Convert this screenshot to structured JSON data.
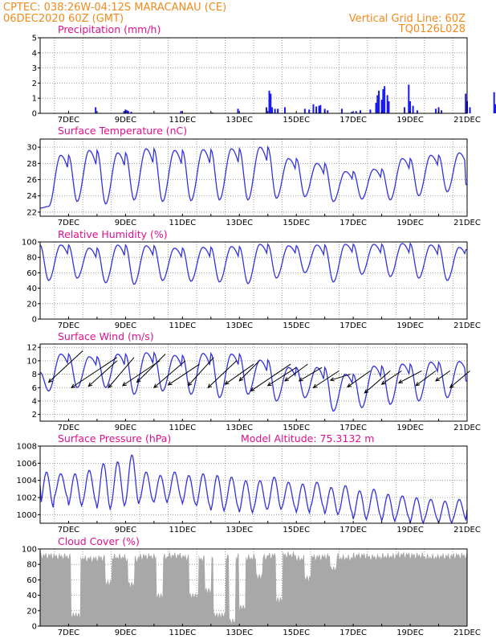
{
  "header": {
    "line1": "CPTEC:   038:26W-04:12S   MARACANAU (CE)",
    "line2": "06DEC2020 60Z (GMT)",
    "right1": "Vertical Grid Line: 60Z",
    "right2": "TQ0126L028"
  },
  "colors": {
    "line": "#3333dd",
    "bar": "#1a1aee",
    "cloud": "#a8a8a8",
    "title": "#e0108f",
    "header": "#f28a1c"
  },
  "x_ticks": [
    "7DEC",
    "9DEC",
    "11DEC",
    "13DEC",
    "15DEC",
    "17DEC",
    "19DEC",
    "21DEC"
  ],
  "chart_data": [
    {
      "type": "bar",
      "title": "Precipitation (mm/h)",
      "ylim": [
        0,
        5
      ],
      "yticks": [
        "0",
        "1",
        "2",
        "3",
        "4",
        "5"
      ],
      "x_unit": "days since 06DEC 00Z",
      "events": [
        [
          1.95,
          0.4
        ],
        [
          2.95,
          0.15
        ],
        [
          3.0,
          0.25
        ],
        [
          3.05,
          0.2
        ],
        [
          3.1,
          0.15
        ],
        [
          3.2,
          0.1
        ],
        [
          4.95,
          0.15
        ],
        [
          6.05,
          0.05
        ],
        [
          6.95,
          0.3
        ],
        [
          7.95,
          0.4
        ],
        [
          8.05,
          1.5
        ],
        [
          8.1,
          1.3
        ],
        [
          8.15,
          0.4
        ],
        [
          8.25,
          0.3
        ],
        [
          8.35,
          0.3
        ],
        [
          8.6,
          0.4
        ],
        [
          9.3,
          0.3
        ],
        [
          9.45,
          0.25
        ],
        [
          9.6,
          0.6
        ],
        [
          9.7,
          0.45
        ],
        [
          9.8,
          0.5
        ],
        [
          9.85,
          0.55
        ],
        [
          10.0,
          0.3
        ],
        [
          10.1,
          0.2
        ],
        [
          10.6,
          0.3
        ],
        [
          10.95,
          0.1
        ],
        [
          11.1,
          0.15
        ],
        [
          11.25,
          0.2
        ],
        [
          11.6,
          0.25
        ],
        [
          11.8,
          0.7
        ],
        [
          11.85,
          1.2
        ],
        [
          11.9,
          1.5
        ],
        [
          12.0,
          0.9
        ],
        [
          12.05,
          1.6
        ],
        [
          12.1,
          1.8
        ],
        [
          12.2,
          1.2
        ],
        [
          12.25,
          0.8
        ],
        [
          12.8,
          0.4
        ],
        [
          12.95,
          1.9
        ],
        [
          13.0,
          0.8
        ],
        [
          13.1,
          0.5
        ],
        [
          13.25,
          0.2
        ],
        [
          13.9,
          0.3
        ],
        [
          14.0,
          0.4
        ],
        [
          14.1,
          0.2
        ],
        [
          14.95,
          1.3
        ],
        [
          15.0,
          0.8
        ],
        [
          15.1,
          0.4
        ],
        [
          15.95,
          1.4
        ],
        [
          16.0,
          0.6
        ]
      ]
    },
    {
      "type": "line",
      "title": "Surface Temperature (nC)",
      "ylim": [
        21.5,
        31
      ],
      "yticks": [
        "22",
        "24",
        "26",
        "28",
        "30"
      ],
      "daily_max": [
        29,
        29.6,
        29.3,
        29.8,
        29.6,
        29.7,
        29.8,
        30.0,
        28.6,
        28.0,
        27.0,
        27.3,
        28.6,
        29.0,
        29.3
      ],
      "daily_min": [
        22.7,
        23.3,
        23.0,
        23.5,
        23.3,
        23.4,
        23.5,
        23.5,
        23.7,
        23.9,
        23.3,
        23.6,
        23.5,
        24.0,
        24.5
      ],
      "start": 22.5,
      "end": 25.4
    },
    {
      "type": "line",
      "title": "Relative Humidity (%)",
      "ylim": [
        0,
        100
      ],
      "yticks": [
        "0",
        "20",
        "40",
        "60",
        "80",
        "100"
      ],
      "daily_max": [
        96,
        92,
        96,
        95,
        92,
        93,
        94,
        97,
        95,
        96,
        97,
        97,
        98,
        96,
        93
      ],
      "daily_min": [
        50,
        53,
        47,
        45,
        50,
        49,
        48,
        46,
        53,
        60,
        48,
        58,
        55,
        53,
        50
      ],
      "start": 96,
      "end": 90
    },
    {
      "type": "line",
      "title": "Surface Wind (m/s)",
      "ylim": [
        1,
        12.5
      ],
      "yticks": [
        "2",
        "4",
        "6",
        "8",
        "10",
        "12"
      ],
      "daily_max": [
        11.0,
        10.6,
        11.0,
        11.2,
        10.8,
        11.1,
        11.0,
        10.1,
        9.0,
        9.0,
        8.0,
        9.2,
        9.5,
        9.8,
        9.9
      ],
      "daily_min": [
        5.5,
        6.0,
        6.0,
        5.0,
        5.5,
        5.0,
        4.5,
        5.0,
        4.0,
        4.5,
        2.5,
        3.0,
        3.5,
        4.0,
        4.5
      ],
      "start": 8.3,
      "end": 7.0,
      "vectors": [
        [
          0.3,
          6.8,
          1.2,
          11.5
        ],
        [
          1.1,
          6.0,
          1.6,
          10.5
        ],
        [
          1.7,
          6.2,
          1.0,
          10.0
        ],
        [
          2.4,
          6.0,
          0.9,
          10.5
        ],
        [
          2.9,
          6.3,
          1.3,
          10.0
        ],
        [
          3.4,
          6.8,
          1.0,
          11.0
        ],
        [
          4.0,
          6.0,
          1.1,
          10.0
        ],
        [
          4.5,
          6.4,
          1.1,
          9.5
        ],
        [
          5.2,
          6.3,
          0.9,
          10.5
        ],
        [
          5.9,
          6.0,
          1.0,
          10.0
        ],
        [
          6.5,
          6.5,
          1.0,
          9.5
        ],
        [
          7.0,
          7.0,
          0.7,
          10.0
        ],
        [
          7.4,
          5.5,
          1.4,
          9.5
        ],
        [
          8.0,
          6.3,
          1.0,
          9.0
        ],
        [
          8.6,
          7.0,
          0.8,
          9.5
        ],
        [
          9.1,
          7.0,
          0.8,
          9.0
        ],
        [
          9.6,
          6.0,
          0.9,
          8.5
        ],
        [
          10.2,
          7.1,
          0.7,
          8.0
        ],
        [
          10.8,
          6.1,
          0.8,
          8.5
        ],
        [
          11.4,
          5.2,
          0.9,
          8.5
        ],
        [
          12.0,
          6.5,
          0.7,
          8.5
        ],
        [
          12.6,
          6.7,
          0.8,
          8.5
        ],
        [
          13.2,
          6.3,
          0.7,
          8.5
        ],
        [
          13.9,
          7.0,
          0.5,
          8.5
        ],
        [
          14.4,
          6.0,
          0.7,
          8.5
        ]
      ]
    },
    {
      "type": "line",
      "title": "Surface Pressure (hPa)",
      "subtitle": "Model Altitude: 75.3132 m",
      "ylim": [
        999,
        1008
      ],
      "yticks": [
        "1000",
        "1002",
        "1004",
        "1006",
        "1008"
      ],
      "semi_max": [
        1005.0,
        1004.8,
        1004.8,
        1005.2,
        1006.0,
        1006.2,
        1007.0,
        1005.0,
        1004.6,
        1005.0,
        1004.6,
        1004.8,
        1004.6,
        1004.4,
        1004.0,
        1004.0,
        1004.4,
        1003.8,
        1003.6,
        1003.8,
        1003.2,
        1003.4,
        1002.8,
        1003.0,
        1002.4,
        1002.2,
        1002.0,
        1001.8,
        1001.6,
        1001.8
      ],
      "semi_min": [
        1000.8,
        1002.0,
        1001.0,
        1001.4,
        1000.6,
        1001.0,
        1001.2,
        1001.6,
        1001.4,
        1001.8,
        1001.2,
        1001.0,
        1000.4,
        1000.8,
        1000.2,
        1000.6,
        1000.6,
        1000.8,
        1000.2,
        1000.8,
        1000.0,
        1000.2,
        999.4,
        999.8,
        999.2,
        999.6,
        999.0,
        999.4,
        999.0,
        999.4
      ],
      "start": 1003.4,
      "end": 1000.6
    },
    {
      "type": "area",
      "title": "Cloud Cover (%)",
      "ylim": [
        0,
        100
      ],
      "yticks": [
        "0",
        "20",
        "40",
        "60",
        "80",
        "100"
      ],
      "baseline": [
        92,
        91,
        90,
        88,
        89,
        90,
        88,
        91,
        90,
        92,
        90,
        88,
        90,
        91,
        89,
        90,
        92,
        93,
        88,
        90,
        91,
        89,
        92,
        90,
        91,
        93,
        92,
        90,
        91,
        92
      ],
      "dips": [
        [
          1.1,
          1.4,
          10
        ],
        [
          2.3,
          2.5,
          52
        ],
        [
          3.1,
          3.3,
          50
        ],
        [
          4.1,
          4.3,
          35
        ],
        [
          5.25,
          5.55,
          35
        ],
        [
          5.8,
          6.0,
          42
        ],
        [
          6.1,
          6.5,
          10
        ],
        [
          6.65,
          6.85,
          2
        ],
        [
          7.0,
          7.2,
          20
        ],
        [
          7.6,
          7.8,
          60
        ],
        [
          8.3,
          8.5,
          30
        ],
        [
          9.3,
          9.5,
          58
        ],
        [
          10.2,
          10.4,
          70
        ]
      ]
    }
  ]
}
